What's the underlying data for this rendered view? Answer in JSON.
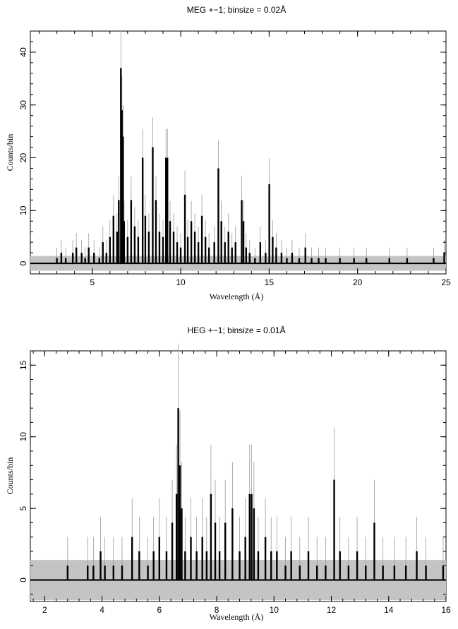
{
  "chart_data": [
    {
      "type": "line",
      "title": "MEG +−1; binsize = 0.02Å",
      "xlabel": "Wavelength (Å)",
      "ylabel": "Counts/bin",
      "xlim": [
        1.5,
        25
      ],
      "ylim": [
        -2,
        44
      ],
      "xticks": [
        5,
        10,
        15,
        20,
        25
      ],
      "yticks": [
        0,
        10,
        20,
        30,
        40
      ],
      "error_band": [
        -1.4,
        1.4
      ],
      "series": [
        {
          "x": [
            3.0,
            3.25,
            3.5,
            3.9,
            4.1,
            4.4,
            4.6,
            4.8,
            5.1,
            5.4,
            5.6,
            5.8,
            6.0,
            6.2,
            6.4,
            6.5,
            6.62,
            6.68,
            6.74,
            6.8,
            7.0,
            7.2,
            7.4,
            7.6,
            7.85,
            8.0,
            8.2,
            8.42,
            8.6,
            8.8,
            9.0,
            9.17,
            9.25,
            9.4,
            9.6,
            9.8,
            10.0,
            10.24,
            10.4,
            10.6,
            10.8,
            11.0,
            11.2,
            11.4,
            11.6,
            11.9,
            12.13,
            12.3,
            12.5,
            12.7,
            12.9,
            13.1,
            13.45,
            13.55,
            13.7,
            13.9,
            14.2,
            14.5,
            14.8,
            15.01,
            15.2,
            15.4,
            15.7,
            16.0,
            16.3,
            16.7,
            17.05,
            17.4,
            17.8,
            18.2,
            19.0,
            19.8,
            20.5,
            21.8,
            22.8,
            24.3,
            24.9
          ],
          "y": [
            1,
            2,
            1,
            2,
            3,
            2,
            1,
            3,
            2,
            1,
            4,
            2,
            5,
            9,
            6,
            12,
            37,
            29,
            24,
            8,
            5,
            12,
            7,
            5,
            20,
            9,
            6,
            22,
            12,
            6,
            5,
            20,
            20,
            8,
            6,
            4,
            3,
            13,
            5,
            8,
            6,
            4,
            9,
            5,
            3,
            4,
            18,
            8,
            4,
            6,
            3,
            4,
            12,
            8,
            3,
            2,
            1,
            4,
            2,
            15,
            5,
            3,
            2,
            1,
            2,
            1,
            3,
            1,
            1,
            1,
            1,
            1,
            1,
            1,
            1,
            1,
            2
          ]
        }
      ]
    },
    {
      "type": "line",
      "title": "HEG +−1; binsize = 0.01Å",
      "xlabel": "Wavelength (Å)",
      "ylabel": "Counts/bin",
      "xlim": [
        1.5,
        16
      ],
      "ylim": [
        -1.5,
        16
      ],
      "xticks": [
        2,
        4,
        6,
        8,
        10,
        12,
        14,
        16
      ],
      "yticks": [
        0,
        5,
        10,
        15
      ],
      "error_band": [
        -1.4,
        1.4
      ],
      "series": [
        {
          "x": [
            2.8,
            3.5,
            3.7,
            3.95,
            4.1,
            4.4,
            4.7,
            5.05,
            5.3,
            5.6,
            5.8,
            6.0,
            6.25,
            6.45,
            6.6,
            6.66,
            6.72,
            6.78,
            6.9,
            7.1,
            7.3,
            7.5,
            7.65,
            7.8,
            7.95,
            8.1,
            8.3,
            8.55,
            8.8,
            9.0,
            9.15,
            9.22,
            9.3,
            9.45,
            9.7,
            9.9,
            10.1,
            10.4,
            10.6,
            10.9,
            11.2,
            11.5,
            11.8,
            12.1,
            12.3,
            12.6,
            12.9,
            13.2,
            13.5,
            13.8,
            14.2,
            14.6,
            14.98,
            15.3,
            15.9
          ],
          "y": [
            1,
            1,
            1,
            2,
            1,
            1,
            1,
            3,
            2,
            1,
            2,
            3,
            2,
            4,
            6,
            12,
            8,
            5,
            2,
            3,
            2,
            3,
            2,
            6,
            4,
            2,
            4,
            5,
            2,
            3,
            6,
            6,
            5,
            2,
            3,
            2,
            2,
            1,
            2,
            1,
            2,
            1,
            1,
            7,
            2,
            1,
            2,
            1,
            4,
            1,
            1,
            1,
            2,
            1,
            1
          ]
        }
      ]
    }
  ]
}
